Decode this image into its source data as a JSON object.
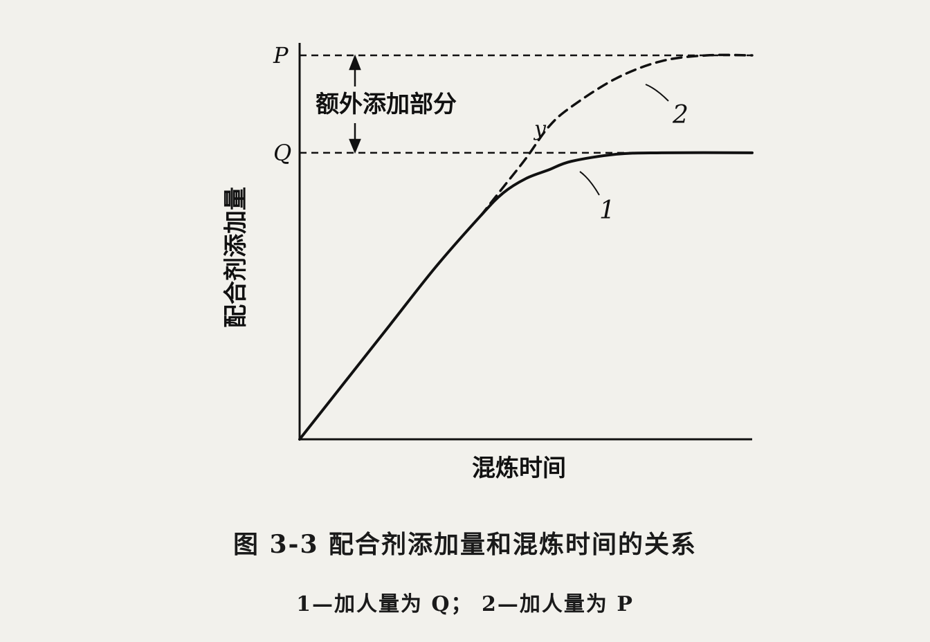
{
  "chart_data": {
    "type": "line",
    "title": "",
    "xlabel": "混炼时间",
    "ylabel": "配合剂添加量",
    "xlim": [
      0,
      1
    ],
    "ylim": [
      0,
      1.34
    ],
    "y_levels": [
      {
        "label": "P",
        "value": 1.34
      },
      {
        "label": "Q",
        "value": 1.0
      }
    ],
    "series": [
      {
        "name": "1",
        "style": "solid",
        "x": [
          0,
          0.1,
          0.2,
          0.3,
          0.4,
          0.45,
          0.5,
          0.55,
          0.6,
          0.7,
          0.8,
          1.0
        ],
        "y": [
          0,
          0.2,
          0.4,
          0.6,
          0.78,
          0.86,
          0.91,
          0.94,
          0.97,
          0.995,
          1.0,
          1.0
        ]
      },
      {
        "name": "2",
        "style": "dashed",
        "x": [
          0.4,
          0.45,
          0.5,
          0.55,
          0.6,
          0.7,
          0.8,
          0.9,
          1.0
        ],
        "y": [
          0.78,
          0.88,
          0.98,
          1.09,
          1.16,
          1.26,
          1.32,
          1.34,
          1.34
        ]
      }
    ],
    "annotations": {
      "extra": "额外添加部分",
      "point_y": "y",
      "label_1": "1",
      "label_2": "2"
    }
  },
  "caption": {
    "title": "图 3-3   配合剂添加量和混炼时间的关系",
    "note": "1—加人量为 Q； 2—加人量为 P"
  }
}
